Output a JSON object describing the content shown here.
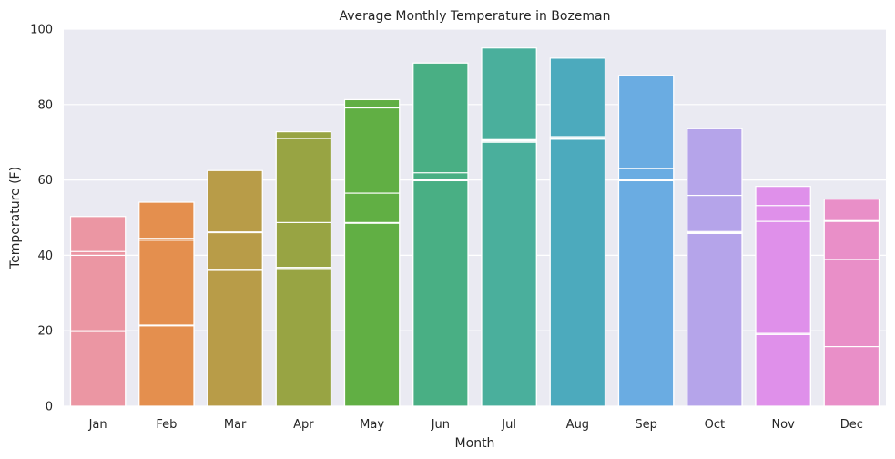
{
  "chart_data": {
    "type": "bar",
    "title": "Average Monthly Temperature in Bozeman",
    "xlabel": "Month",
    "ylabel": "Temperature (F)",
    "ylim": [
      0,
      100
    ],
    "yticks": [
      0,
      20,
      40,
      60,
      80,
      100
    ],
    "grid": true,
    "categories": [
      "Jan",
      "Feb",
      "Mar",
      "Apr",
      "May",
      "Jun",
      "Jul",
      "Aug",
      "Sep",
      "Oct",
      "Nov",
      "Dec"
    ],
    "colors": [
      "#eb96a3",
      "#e48f4e",
      "#b89c48",
      "#98a443",
      "#61af44",
      "#49af84",
      "#4aaf9c",
      "#4caabd",
      "#6aace2",
      "#b5a4ea",
      "#df90ea",
      "#e98fc8"
    ],
    "series": [
      {
        "values": [
          50.3,
          54.1,
          62.5,
          72.8,
          81.3,
          91.0,
          95.0,
          92.3,
          87.7,
          73.6,
          58.3,
          54.9
        ]
      },
      {
        "values": [
          41.0,
          44.5,
          46.2,
          71.0,
          79.1,
          61.9,
          70.7,
          71.5,
          63.0,
          55.9,
          53.2,
          49.2
        ]
      },
      {
        "values": [
          40.0,
          44.0,
          46.0,
          48.7,
          56.5,
          60.2,
          70.5,
          71.2,
          60.2,
          46.3,
          49.0,
          49.0
        ]
      },
      {
        "values": [
          20.0,
          21.5,
          36.3,
          36.8,
          48.7,
          60.0,
          70.3,
          71.0,
          60.0,
          46.0,
          19.3,
          38.9
        ]
      },
      {
        "values": [
          19.8,
          21.3,
          36.0,
          36.5,
          48.5,
          59.8,
          70.0,
          70.8,
          59.8,
          45.8,
          19.0,
          15.8
        ]
      }
    ]
  }
}
